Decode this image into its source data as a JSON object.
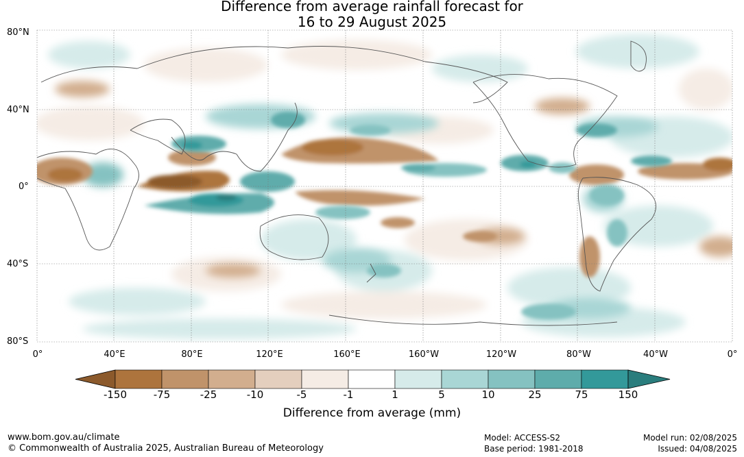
{
  "title": {
    "line1": "Difference from average rainfall forecast for",
    "line2": "16 to 29 August 2025"
  },
  "axes": {
    "lat_labels": [
      "80°N",
      "40°N",
      "0°",
      "40°S",
      "80°S"
    ],
    "lon_labels": [
      "0°",
      "40°E",
      "80°E",
      "120°E",
      "160°E",
      "160°W",
      "120°W",
      "80°W",
      "40°W",
      "0°"
    ]
  },
  "colorbar": {
    "title": "Difference from average (mm)",
    "tick_labels": [
      "-150",
      "-75",
      "-25",
      "-10",
      "-5",
      "-1",
      "1",
      "5",
      "10",
      "25",
      "75",
      "150"
    ],
    "colors": [
      "#8c5a2c",
      "#ad743d",
      "#c0936a",
      "#d2ae8e",
      "#e4cfbe",
      "#f5ece5",
      "#ffffff",
      "#d6ebea",
      "#a9d6d5",
      "#85c2c1",
      "#5eacab",
      "#33999a",
      "#2a7d7d"
    ]
  },
  "footer": {
    "website": "www.bom.gov.au/climate",
    "copyright": "© Commonwealth of Australia 2025, Australian Bureau of Meteorology",
    "model": "Model: ACCESS-S2",
    "base_period": "Base period: 1981-2018",
    "model_run": "Model run: 02/08/2025",
    "issued": "Issued: 04/08/2025"
  }
}
